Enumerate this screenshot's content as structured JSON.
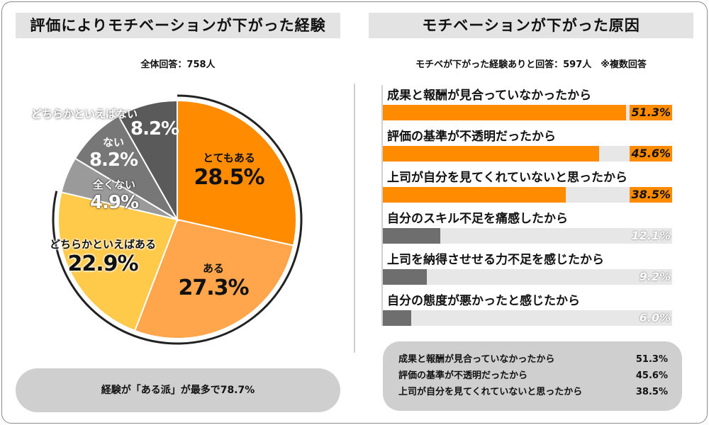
{
  "left": {
    "title": "評価によりモチベーションが下がった経験",
    "respondents": "全体回答：758人",
    "summary": "経験が「ある派」が最多で78.7%"
  },
  "right": {
    "title": "モチベーションが下がった原因",
    "respondents": "モチベが下がった経験ありと回答：597人　※複数回答",
    "summary": [
      {
        "label": "成果と報酬が見合っていなかったから",
        "value": "51.3%"
      },
      {
        "label": "評価の基準が不透明だったから",
        "value": "45.6%"
      },
      {
        "label": "上司が自分を見てくれていないと思ったから",
        "value": "38.5%"
      }
    ]
  },
  "chart_data": [
    {
      "type": "pie",
      "title": "評価によりモチベーションが下がった経験",
      "categories": [
        "とてもある",
        "ある",
        "どちらかといえばある",
        "全くない",
        "ない",
        "どちらかといえばない"
      ],
      "values": [
        28.5,
        27.3,
        22.9,
        4.9,
        8.2,
        8.2
      ],
      "labels": [
        "28.5%",
        "27.3%",
        "22.9%",
        "4.9%",
        "8.2%",
        "8.2%"
      ],
      "colors": [
        "#ff8c00",
        "#ffa64d",
        "#ffc94a",
        "#9a9a9a",
        "#777777",
        "#5a5a5a"
      ]
    },
    {
      "type": "bar",
      "orientation": "horizontal",
      "title": "モチベーションが下がった原因",
      "categories": [
        "成果と報酬が見合っていなかったから",
        "評価の基準が不透明だったから",
        "上司が自分を見てくれていないと思ったから",
        "自分のスキル不足を痛感したから",
        "上司を納得させせる力不足を感じたから",
        "自分の態度が悪かったと感じたから"
      ],
      "values": [
        51.3,
        45.6,
        38.5,
        12.1,
        9.2,
        6.0
      ],
      "labels": [
        "51.3%",
        "45.6%",
        "38.5%",
        "12.1%",
        "9.2%",
        "6.0%"
      ],
      "xlim": [
        0,
        61
      ],
      "colors": {
        "highlight": "#ff8c00",
        "normal": "#6e6e6e",
        "track": "#e7e7e7"
      }
    }
  ]
}
